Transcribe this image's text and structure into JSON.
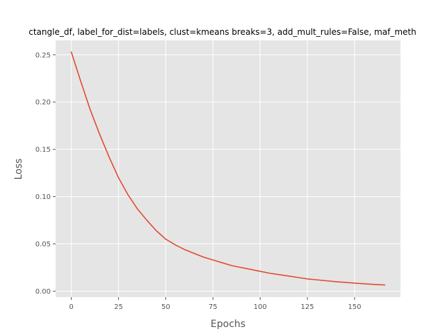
{
  "chart_data": {
    "type": "line",
    "title": "ctangle_df, label_for_dist=labels, clust=kmeans breaks=3, add_mult_rules=False, maf_meth",
    "xlabel": "Epochs",
    "ylabel": "Loss",
    "xlim": [
      -8.3,
      174.3
    ],
    "ylim": [
      -0.0063,
      0.2653
    ],
    "xticks": [
      0,
      25,
      50,
      75,
      100,
      125,
      150
    ],
    "xtick_labels": [
      "0",
      "25",
      "50",
      "75",
      "100",
      "125",
      "150"
    ],
    "yticks": [
      0.0,
      0.05,
      0.1,
      0.15,
      0.2,
      0.25
    ],
    "ytick_labels": [
      "0.00",
      "0.05",
      "0.10",
      "0.15",
      "0.20",
      "0.25"
    ],
    "grid": true,
    "legend": "none",
    "series": [
      {
        "color": "#E24A33",
        "x": [
          0,
          5,
          10,
          15,
          20,
          25,
          30,
          35,
          40,
          45,
          50,
          55,
          60,
          65,
          70,
          75,
          80,
          85,
          90,
          95,
          100,
          105,
          110,
          115,
          120,
          125,
          130,
          135,
          140,
          145,
          150,
          155,
          160,
          166
        ],
        "y": [
          0.253,
          0.222,
          0.192,
          0.166,
          0.142,
          0.12,
          0.102,
          0.087,
          0.075,
          0.064,
          0.055,
          0.049,
          0.044,
          0.04,
          0.036,
          0.033,
          0.03,
          0.027,
          0.025,
          0.023,
          0.021,
          0.019,
          0.0175,
          0.016,
          0.0145,
          0.013,
          0.012,
          0.011,
          0.01,
          0.0093,
          0.0085,
          0.0078,
          0.0072,
          0.0065
        ]
      }
    ]
  },
  "colors": {
    "plot_background": "#E5E5E5",
    "grid": "#FFFFFF",
    "line": "#E24A33"
  }
}
